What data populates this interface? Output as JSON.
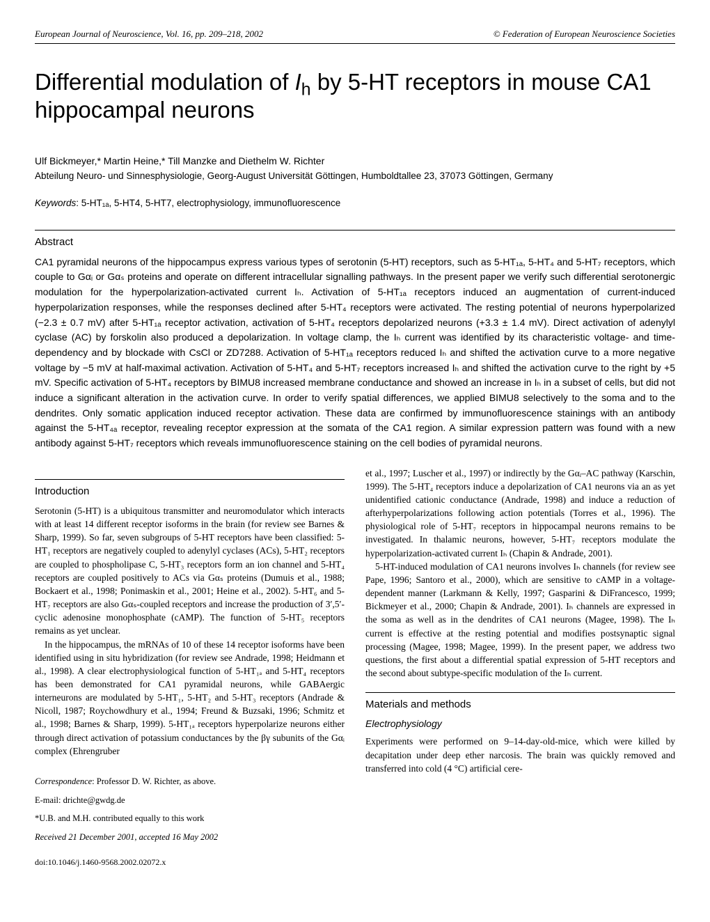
{
  "header": {
    "journal": "European Journal of Neuroscience, Vol. 16, pp. 209–218, 2002",
    "copyright": "© Federation of European Neuroscience Societies"
  },
  "title_parts": {
    "pre": "Differential modulation of ",
    "ital": "I",
    "sub": "h",
    "post": " by 5-HT receptors in mouse CA1 hippocampal neurons"
  },
  "authors": "Ulf Bickmeyer,* Martin Heine,* Till Manzke and Diethelm W. Richter",
  "affiliation": "Abteilung Neuro- und Sinnesphysiologie, Georg-August Universität Göttingen, Humboldtallee 23, 37073 Göttingen, Germany",
  "keywords_label": "Keywords",
  "keywords_text": ": 5-HT₁ₐ, 5-HT4, 5-HT7, electrophysiology, immunofluorescence",
  "abstract_heading": "Abstract",
  "abstract_text": "CA1 pyramidal neurons of the hippocampus express various types of serotonin (5-HT) receptors, such as 5-HT₁ₐ, 5-HT₄ and 5-HT₇ receptors, which couple to Gαᵢ or Gαₛ proteins and operate on different intracellular signalling pathways. In the present paper we verify such differential serotonergic modulation for the hyperpolarization-activated current Iₕ. Activation of 5-HT₁ₐ receptors induced an augmentation of current-induced hyperpolarization responses, while the responses declined after 5-HT₄ receptors were activated. The resting potential of neurons hyperpolarized (−2.3 ± 0.7 mV) after 5-HT₁ₐ receptor activation, activation of 5-HT₄ receptors depolarized neurons (+3.3 ± 1.4 mV). Direct activation of adenylyl cyclase (AC) by forskolin also produced a depolarization. In voltage clamp, the Iₕ current was identified by its characteristic voltage- and time-dependency and by blockade with CsCl or ZD7288. Activation of 5-HT₁ₐ receptors reduced Iₕ and shifted the activation curve to a more negative voltage by −5 mV at half-maximal activation. Activation of 5-HT₄ and 5-HT₇ receptors increased Iₕ and shifted the activation curve to the right by +5 mV. Specific activation of 5-HT₄ receptors by BIMU8 increased membrane conductance and showed an increase in Iₕ in a subset of cells, but did not induce a significant alteration in the activation curve. In order to verify spatial differences, we applied BIMU8 selectively to the soma and to the dendrites. Only somatic application induced receptor activation. These data are confirmed by immunofluorescence stainings with an antibody against the 5-HT₄ₐ receptor, revealing receptor expression at the somata of the CA1 region. A similar expression pattern was found with a new antibody against 5-HT₇ receptors which reveals immunofluorescence staining on the cell bodies of pyramidal neurons.",
  "intro_heading": "Introduction",
  "intro_p1": "Serotonin (5-HT) is a ubiquitous transmitter and neuromodulator which interacts with at least 14 different receptor isoforms in the brain (for review see Barnes & Sharp, 1999). So far, seven subgroups of 5-HT receptors have been classified: 5-HT₁ receptors are negatively coupled to adenylyl cyclases (ACs), 5-HT₂ receptors are coupled to phospholipase C, 5-HT₃ receptors form an ion channel and 5-HT₄ receptors are coupled positively to ACs via Gαₛ proteins (Dumuis et al., 1988; Bockaert et al., 1998; Ponimaskin et al., 2001; Heine et al., 2002). 5-HT₆ and 5-HT₇ receptors are also Gαₛ-coupled receptors and increase the production of 3′,5′-cyclic adenosine monophosphate (cAMP). The function of 5-HT₅ receptors remains as yet unclear.",
  "intro_p2": "In the hippocampus, the mRNAs of 10 of these 14 receptor isoforms have been identified using in situ hybridization (for review see Andrade, 1998; Heidmann et al., 1998). A clear electrophysiological function of 5-HT₁ₐ and 5-HT₄ receptors has been demonstrated for CA1 pyramidal neurons, while GABAergic interneurons are modulated by 5-HT₁, 5-HT₂ and 5-HT₃ receptors (Andrade & Nicoll, 1987; Roychowdhury et al., 1994; Freund & Buzsaki, 1996; Schmitz et al., 1998; Barnes & Sharp, 1999). 5-HT₁ₐ receptors hyperpolarize neurons either through direct activation of potassium conductances by the βγ subunits of the Gαᵢ complex (Ehrengruber",
  "corr_label": "Correspondence",
  "corr_text": ": Professor D. W. Richter, as above.",
  "email": "E-mail: drichte@gwdg.de",
  "contrib": "*U.B. and M.H. contributed equally to this work",
  "received": "Received 21 December 2001, accepted 16 May 2002",
  "doi": "doi:10.1046/j.1460-9568.2002.02072.x",
  "right_p1": "et al., 1997; Luscher et al., 1997) or indirectly by the Gαᵢ–AC pathway (Karschin, 1999). The 5-HT₄ receptors induce a depolarization of CA1 neurons via an as yet unidentified cationic conductance (Andrade, 1998) and induce a reduction of afterhyperpolarizations following action potentials (Torres et al., 1996). The physiological role of 5-HT₇ receptors in hippocampal neurons remains to be investigated. In thalamic neurons, however, 5-HT₇ receptors modulate the hyperpolarization-activated current Iₕ (Chapin & Andrade, 2001).",
  "right_p2": "5-HT-induced modulation of CA1 neurons involves Iₕ channels (for review see Pape, 1996; Santoro et al., 2000), which are sensitive to cAMP in a voltage-dependent manner (Larkmann & Kelly, 1997; Gasparini & DiFrancesco, 1999; Bickmeyer et al., 2000; Chapin & Andrade, 2001). Iₕ channels are expressed in the soma as well as in the dendrites of CA1 neurons (Magee, 1998). The Iₕ current is effective at the resting potential and modifies postsynaptic signal processing (Magee, 1998; Magee, 1999). In the present paper, we address two questions, the first about a differential spatial expression of 5-HT receptors and the second about subtype-specific modulation of the Iₕ current.",
  "methods_heading": "Materials and methods",
  "methods_sub": "Electrophysiology",
  "methods_p1": "Experiments were performed on 9–14-day-old-mice, which were killed by decapitation under deep ether narcosis. The brain was quickly removed and transferred into cold (4 °C) artificial cere-"
}
